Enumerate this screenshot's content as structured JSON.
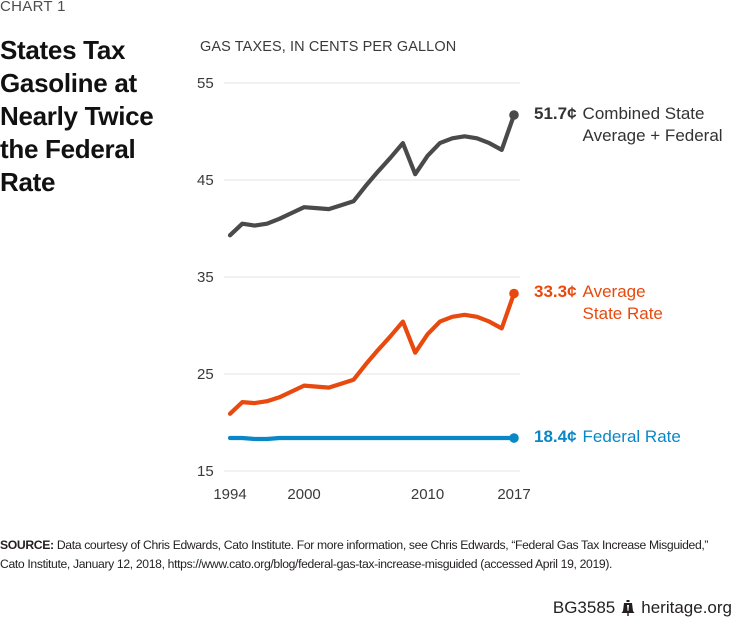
{
  "chart_label": "CHART 1",
  "title": "States Tax Gasoline at Nearly Twice the Federal Rate",
  "source_label": "SOURCE:",
  "source_text": "Data courtesy of Chris Edwards, Cato Institute. For more information, see Chris Edwards, “Federal Gas Tax Increase Misguided,” Cato Institute, January 12, 2018, https://www.cato.org/blog/federal-gas-tax-increase-misguided (accessed April 19, 2019).",
  "footer": {
    "code": "BG3585",
    "site": "heritage.org",
    "icon": "liberty-bell-icon"
  },
  "chart_data": {
    "type": "line",
    "title": "States Tax Gasoline at Nearly Twice the Federal Rate",
    "ylabel": "GAS TAXES, IN CENTS PER GALLON",
    "xlabel": "",
    "ylim": [
      15,
      55
    ],
    "yticks": [
      15,
      25,
      35,
      45,
      55
    ],
    "xlim": [
      1994,
      2017
    ],
    "xticks": [
      1994,
      2000,
      2010,
      2017
    ],
    "grid": true,
    "x": [
      1994,
      1995,
      1996,
      1997,
      1998,
      1999,
      2000,
      2001,
      2002,
      2003,
      2004,
      2005,
      2006,
      2007,
      2008,
      2009,
      2010,
      2011,
      2012,
      2013,
      2014,
      2015,
      2016,
      2017
    ],
    "series": [
      {
        "name": "Combined State Average + Federal",
        "color": "#4a4a4a",
        "end_label": "51.7¢",
        "label_lines": [
          "Combined State",
          "Average + Federal"
        ],
        "values": [
          39.3,
          40.5,
          40.3,
          40.5,
          41.0,
          41.6,
          42.2,
          42.1,
          42.0,
          42.4,
          42.8,
          44.4,
          45.9,
          47.3,
          48.8,
          45.6,
          47.5,
          48.8,
          49.3,
          49.5,
          49.3,
          48.8,
          48.1,
          51.7
        ]
      },
      {
        "name": "Average State Rate",
        "color": "#e8490f",
        "end_label": "33.3¢",
        "label_lines": [
          "Average",
          "State Rate"
        ],
        "values": [
          20.9,
          22.1,
          22.0,
          22.2,
          22.6,
          23.2,
          23.8,
          23.7,
          23.6,
          24.0,
          24.4,
          26.0,
          27.5,
          28.9,
          30.4,
          27.2,
          29.1,
          30.4,
          30.9,
          31.1,
          30.9,
          30.4,
          29.7,
          33.3
        ]
      },
      {
        "name": "Federal Rate",
        "color": "#0a87c7",
        "end_label": "18.4¢",
        "label_lines": [
          "Federal Rate"
        ],
        "values": [
          18.4,
          18.4,
          18.3,
          18.3,
          18.4,
          18.4,
          18.4,
          18.4,
          18.4,
          18.4,
          18.4,
          18.4,
          18.4,
          18.4,
          18.4,
          18.4,
          18.4,
          18.4,
          18.4,
          18.4,
          18.4,
          18.4,
          18.4,
          18.4
        ]
      }
    ],
    "legend": "inline-right"
  }
}
